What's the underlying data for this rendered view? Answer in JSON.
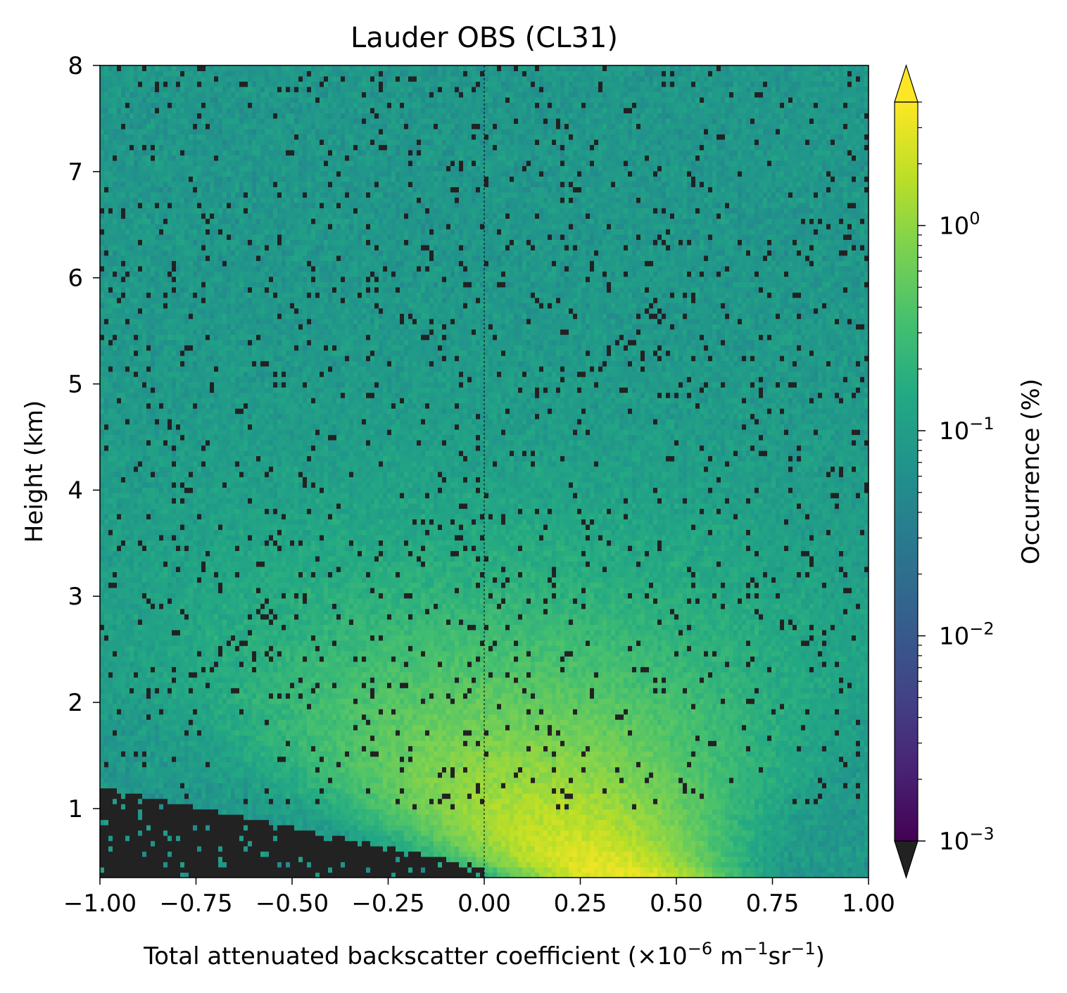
{
  "chart_data": {
    "type": "heatmap",
    "title": "Lauder OBS (CL31)",
    "xlabel": "Total attenuated backscatter coefficient (×10⁻⁶ m⁻¹sr⁻¹)",
    "xlabel_parts": {
      "main": "Total attenuated backscatter coefficient (×10",
      "exp1": "−6",
      "mid1": " m",
      "exp2": "−1",
      "mid2": "sr",
      "exp3": "−1",
      "end": ")"
    },
    "ylabel": "Height (km)",
    "xlim": [
      -1.0,
      1.0
    ],
    "ylim": [
      0.35,
      8
    ],
    "x_ticks": [
      -1.0,
      -0.75,
      -0.5,
      -0.25,
      0.0,
      0.25,
      0.5,
      0.75,
      1.0
    ],
    "x_tick_labels": [
      "−1.00",
      "−0.75",
      "−0.50",
      "−0.25",
      "0.00",
      "0.25",
      "0.50",
      "0.75",
      "1.00"
    ],
    "y_ticks": [
      1,
      2,
      3,
      4,
      5,
      6,
      7,
      8
    ],
    "y_tick_labels": [
      "1",
      "2",
      "3",
      "4",
      "5",
      "6",
      "7",
      "8"
    ],
    "zero_line_x": 0.0,
    "colorscale": "viridis",
    "under_color": "#222222",
    "over_color": "#fde725",
    "colorbar": {
      "label": "Occurrence (%)",
      "scale": "log",
      "range": [
        0.001,
        4.0
      ],
      "extend": "both",
      "ticks": [
        0.001,
        0.01,
        0.1,
        1
      ],
      "tick_bases": [
        "10",
        "10",
        "10",
        "10"
      ],
      "tick_exponents": [
        "−3",
        "−2",
        "−1",
        "0"
      ]
    },
    "distribution": {
      "description_values": "occurrence (%) by height and backscatter; peak near x=0.25 at ~0.5 km",
      "peak_x": 0.27,
      "peak_height_km": 0.55,
      "peak_occurrence": 2.5,
      "upper_level_occurrence": 0.08,
      "below_threshold_region": "x < 0 below ~1.2 km"
    }
  }
}
